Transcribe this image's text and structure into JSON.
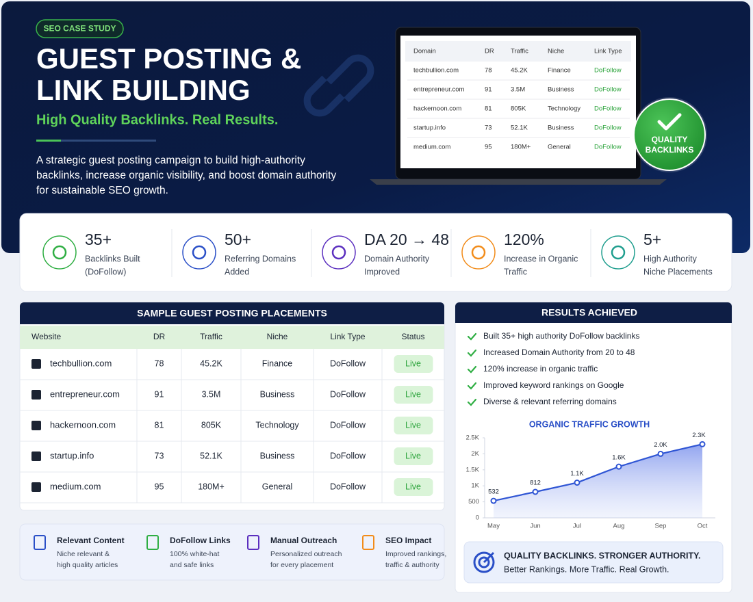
{
  "hero": {
    "badge": "SEO CASE STUDY",
    "title_lines": [
      "GUEST POSTING &",
      "LINK BUILDING"
    ],
    "subtitle": "High Quality Backlinks. Real Results.",
    "description_lines": [
      "A strategic guest posting campaign to build high-authority",
      "backlinks, increase organic visibility, and boost domain authority",
      "for sustainable SEO growth."
    ],
    "seal_lines": [
      "QUALITY",
      "BACKLINKS"
    ]
  },
  "laptop_table": {
    "headers": [
      "Domain",
      "DR",
      "Traffic",
      "Niche",
      "Link Type"
    ]
  },
  "stats": [
    {
      "value": "35+",
      "label_lines": [
        "Backlinks Built",
        "(DoFollow)"
      ]
    },
    {
      "value": "50+",
      "label_lines": [
        "Referring Domains",
        "Added"
      ]
    },
    {
      "value": "DA 20 → 48",
      "label_lines": [
        "Domain Authority",
        "Improved"
      ]
    },
    {
      "value": "120%",
      "label_lines": [
        "Increase in Organic",
        "Traffic"
      ]
    },
    {
      "value": "5+",
      "label_lines": [
        "High Authority",
        "Niche Placements"
      ]
    }
  ],
  "placements": {
    "title": "SAMPLE GUEST POSTING PLACEMENTS",
    "headers": [
      "Website",
      "DR",
      "Traffic",
      "Niche",
      "Link Type",
      "Status"
    ],
    "rows": [
      {
        "website": "techbullion.com",
        "dr": 78,
        "traffic": "45.2K",
        "niche": "Finance",
        "link_type": "DoFollow",
        "status": "Live"
      },
      {
        "website": "entrepreneur.com",
        "dr": 91,
        "traffic": "3.5M",
        "niche": "Business",
        "link_type": "DoFollow",
        "status": "Live"
      },
      {
        "website": "hackernoon.com",
        "dr": 81,
        "traffic": "805K",
        "niche": "Technology",
        "link_type": "DoFollow",
        "status": "Live"
      },
      {
        "website": "startup.info",
        "dr": 73,
        "traffic": "52.1K",
        "niche": "Business",
        "link_type": "DoFollow",
        "status": "Live"
      },
      {
        "website": "medium.com",
        "dr": 95,
        "traffic": "180M+",
        "niche": "General",
        "link_type": "DoFollow",
        "status": "Live"
      }
    ]
  },
  "features": [
    {
      "title": "Relevant Content",
      "lines": [
        "Niche relevant &",
        "high quality articles"
      ]
    },
    {
      "title": "DoFollow Links",
      "lines": [
        "100% white-hat",
        "and safe links"
      ]
    },
    {
      "title": "Manual Outreach",
      "lines": [
        "Personalized outreach",
        "for every placement"
      ]
    },
    {
      "title": "SEO Impact",
      "lines": [
        "Improved rankings,",
        "traffic & authority"
      ]
    }
  ],
  "results": {
    "title": "RESULTS ACHIEVED",
    "items": [
      "Built 35+ high authority DoFollow backlinks",
      "Increased Domain Authority from 20 to 48",
      "120% increase in organic traffic",
      "Improved keyword rankings on Google",
      "Diverse & relevant referring domains"
    ]
  },
  "traffic_chart": {
    "type": "line",
    "title": "ORGANIC TRAFFIC GROWTH",
    "categories": [
      "May",
      "Jun",
      "Jul",
      "Aug",
      "Sep",
      "Oct"
    ],
    "values": [
      532,
      812,
      1100,
      1600,
      2000,
      2300
    ],
    "value_labels": [
      "532",
      "812",
      "1.1K",
      "1.6K",
      "2.0K",
      "2.3K"
    ],
    "color": "#2f55d4",
    "ylim": [
      0,
      2500
    ],
    "yticks": [
      0,
      500,
      {
        "value": 1000,
        "label": "1K"
      },
      {
        "value": 1500,
        "label": "1.5K"
      },
      {
        "value": 2000,
        "label": "2K"
      },
      {
        "value": 2500,
        "label": "2.5K"
      }
    ]
  },
  "banner": {
    "title": "QUALITY BACKLINKS. STRONGER AUTHORITY.",
    "subtitle": "Better Rankings. More Traffic. Real Growth."
  }
}
